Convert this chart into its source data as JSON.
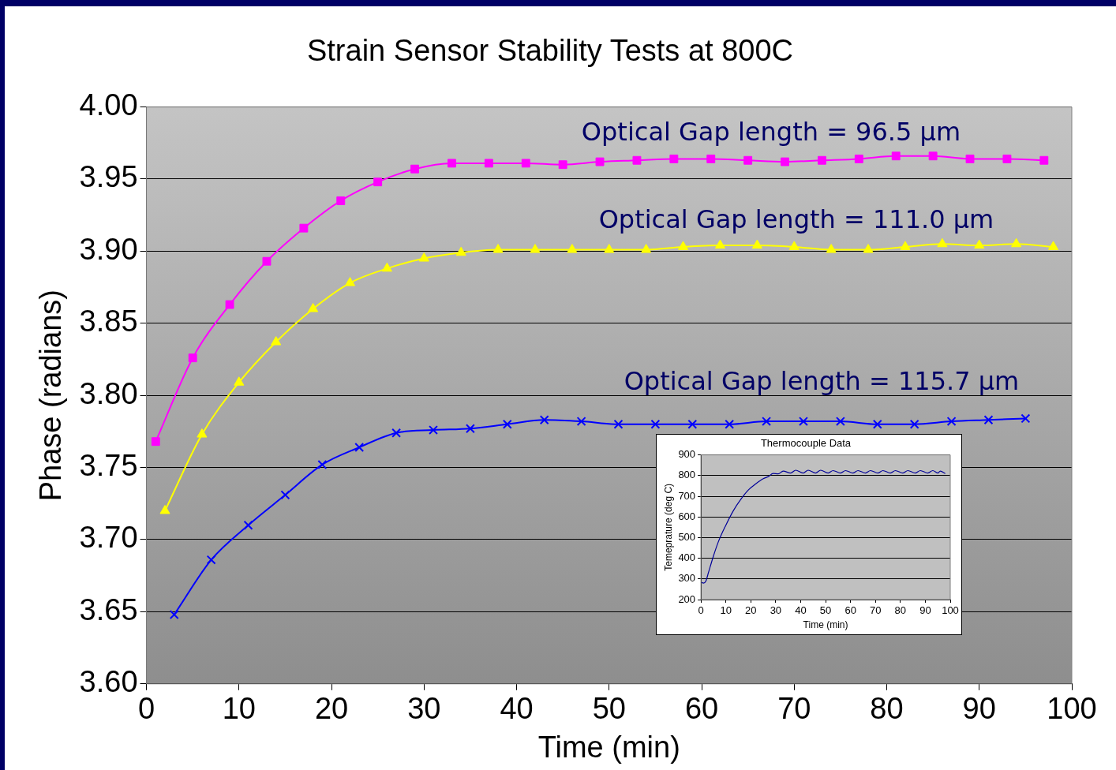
{
  "chart_data": [
    {
      "type": "line",
      "title": "Strain Sensor Stability Tests at 800C",
      "xlabel": "Time (min)",
      "ylabel": "Phase (radians)",
      "xlim": [
        0,
        100
      ],
      "xticks": [
        0,
        10,
        20,
        30,
        40,
        50,
        60,
        70,
        80,
        90,
        100
      ],
      "ylim": [
        3.6,
        4.0
      ],
      "yticks": [
        {
          "value": 3.6,
          "label": "3.60"
        },
        {
          "value": 3.65,
          "label": "3.65"
        },
        {
          "value": 3.7,
          "label": "3.70"
        },
        {
          "value": 3.75,
          "label": "3.75"
        },
        {
          "value": 3.8,
          "label": "3.80"
        },
        {
          "value": 3.85,
          "label": "3.85"
        },
        {
          "value": 3.9,
          "label": "3.90"
        },
        {
          "value": 3.95,
          "label": "3.95"
        },
        {
          "value": 4.0,
          "label": "4.00"
        }
      ],
      "grid": "y",
      "legend": false,
      "series": [
        {
          "name": "Optical Gap length = 96.5 µm",
          "color": "#ff00ff",
          "marker": "square",
          "x": [
            1,
            5,
            9,
            13,
            17,
            21,
            25,
            29,
            33,
            37,
            41,
            45,
            49,
            53,
            57,
            61,
            65,
            69,
            73,
            77,
            81,
            85,
            89,
            93,
            97
          ],
          "values": [
            3.768,
            3.826,
            3.863,
            3.893,
            3.916,
            3.935,
            3.948,
            3.957,
            3.961,
            3.961,
            3.961,
            3.96,
            3.962,
            3.963,
            3.964,
            3.964,
            3.963,
            3.962,
            3.963,
            3.964,
            3.966,
            3.966,
            3.964,
            3.964,
            3.963
          ]
        },
        {
          "name": "Optical Gap length = 111.0 µm",
          "color": "#ffff00",
          "marker": "triangle",
          "x": [
            2,
            6,
            10,
            14,
            18,
            22,
            26,
            30,
            34,
            38,
            42,
            46,
            50,
            54,
            58,
            62,
            66,
            70,
            74,
            78,
            82,
            86,
            90,
            94,
            98
          ],
          "values": [
            3.72,
            3.773,
            3.809,
            3.837,
            3.86,
            3.878,
            3.888,
            3.895,
            3.899,
            3.901,
            3.901,
            3.901,
            3.901,
            3.901,
            3.903,
            3.904,
            3.904,
            3.903,
            3.901,
            3.901,
            3.903,
            3.905,
            3.904,
            3.905,
            3.903
          ]
        },
        {
          "name": "Optical Gap length = 115.7 µm",
          "color": "#0000ff",
          "marker": "cross",
          "x": [
            3,
            7,
            11,
            15,
            19,
            23,
            27,
            31,
            35,
            39,
            43,
            47,
            51,
            55,
            59,
            63,
            67,
            71,
            75,
            79,
            83,
            87,
            91,
            95
          ],
          "values": [
            3.648,
            3.686,
            3.71,
            3.731,
            3.752,
            3.764,
            3.774,
            3.776,
            3.777,
            3.78,
            3.783,
            3.782,
            3.78,
            3.78,
            3.78,
            3.78,
            3.782,
            3.782,
            3.782,
            3.78,
            3.78,
            3.782,
            3.783,
            3.784
          ]
        }
      ]
    },
    {
      "type": "line",
      "title": "Thermocouple Data",
      "xlabel": "Time (min)",
      "ylabel": "Temeprature (deg C)",
      "xlim": [
        0,
        100
      ],
      "xticks": [
        0,
        10,
        20,
        30,
        40,
        50,
        60,
        70,
        80,
        90,
        100
      ],
      "ylim": [
        200,
        900
      ],
      "yticks": [
        200,
        300,
        400,
        500,
        600,
        700,
        800,
        900
      ],
      "grid": "y",
      "legend": false,
      "marker": "none",
      "series": [
        {
          "color": "#000099",
          "x": [
            0,
            1,
            2,
            3,
            5,
            7,
            10,
            13,
            16,
            19,
            22,
            25,
            27,
            29,
            31,
            33,
            36,
            38,
            41,
            43,
            46,
            48,
            51,
            53,
            56,
            58,
            61,
            63,
            66,
            68,
            71,
            73,
            76,
            78,
            81,
            83,
            86,
            88,
            91,
            93,
            95,
            96,
            98
          ],
          "values": [
            285,
            280,
            290,
            330,
            410,
            480,
            560,
            630,
            685,
            730,
            760,
            785,
            795,
            810,
            808,
            822,
            812,
            826,
            812,
            826,
            812,
            826,
            812,
            824,
            812,
            824,
            812,
            824,
            812,
            824,
            812,
            824,
            812,
            824,
            812,
            824,
            812,
            824,
            812,
            824,
            812,
            822,
            810
          ]
        }
      ]
    }
  ]
}
